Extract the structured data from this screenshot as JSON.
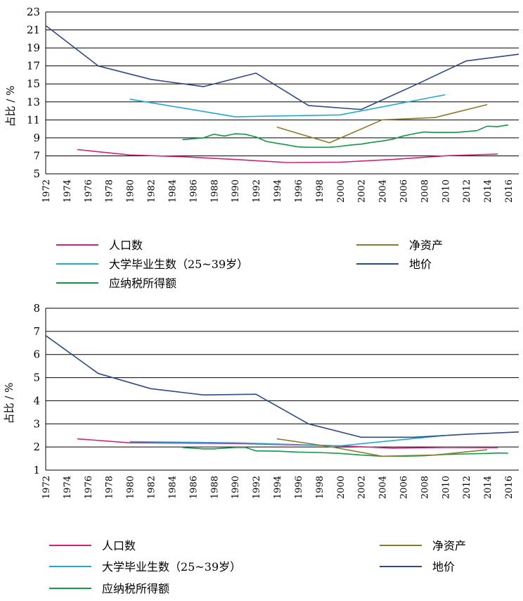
{
  "chart_data": [
    {
      "type": "line",
      "title": "",
      "xlabel": "",
      "ylabel": "占比 / %",
      "ylim": [
        5,
        23
      ],
      "yticks": [
        5,
        7,
        9,
        11,
        13,
        15,
        17,
        19,
        21,
        23
      ],
      "xlim": [
        1972,
        2017
      ],
      "xticks": [
        1972,
        1974,
        1976,
        1978,
        1980,
        1982,
        1984,
        1986,
        1988,
        1990,
        1992,
        1994,
        1996,
        1998,
        2000,
        2002,
        2004,
        2006,
        2008,
        2010,
        2012,
        2014,
        2016
      ],
      "grid": true,
      "legend": "bottom",
      "series": [
        {
          "name": "人口数",
          "color": "#d0237a",
          "points": [
            [
              1975,
              7.7
            ],
            [
              1980,
              7.1
            ],
            [
              1985,
              6.9
            ],
            [
              1990,
              6.6
            ],
            [
              1995,
              6.25
            ],
            [
              2000,
              6.3
            ],
            [
              2005,
              6.6
            ],
            [
              2010,
              7.0
            ],
            [
              2015,
              7.2
            ]
          ]
        },
        {
          "name": "大学毕业生数（25~39岁）",
          "color": "#22a8d6",
          "points": [
            [
              1980,
              13.3
            ],
            [
              1990,
              11.35
            ],
            [
              2000,
              11.55
            ],
            [
              2010,
              13.8
            ]
          ]
        },
        {
          "name": "应纳税所得额",
          "color": "#119944",
          "points": [
            [
              1985,
              8.8
            ],
            [
              1986,
              8.9
            ],
            [
              1987,
              9.0
            ],
            [
              1988,
              9.4
            ],
            [
              1989,
              9.2
            ],
            [
              1990,
              9.45
            ],
            [
              1991,
              9.4
            ],
            [
              1992,
              9.1
            ],
            [
              1993,
              8.6
            ],
            [
              1994,
              8.4
            ],
            [
              1995,
              8.2
            ],
            [
              1996,
              8.0
            ],
            [
              1997,
              7.95
            ],
            [
              1998,
              7.95
            ],
            [
              1999,
              7.95
            ],
            [
              2000,
              8.05
            ],
            [
              2001,
              8.2
            ],
            [
              2002,
              8.3
            ],
            [
              2003,
              8.5
            ],
            [
              2004,
              8.65
            ],
            [
              2005,
              8.85
            ],
            [
              2006,
              9.2
            ],
            [
              2007,
              9.45
            ],
            [
              2008,
              9.65
            ],
            [
              2009,
              9.6
            ],
            [
              2010,
              9.6
            ],
            [
              2011,
              9.6
            ],
            [
              2012,
              9.7
            ],
            [
              2013,
              9.8
            ],
            [
              2014,
              10.3
            ],
            [
              2015,
              10.25
            ],
            [
              2016,
              10.45
            ]
          ]
        },
        {
          "name": "净资产",
          "color": "#8c7a2e",
          "points": [
            [
              1994,
              10.2
            ],
            [
              1999,
              8.45
            ],
            [
              2004,
              11.0
            ],
            [
              2009,
              11.25
            ],
            [
              2014,
              12.7
            ]
          ]
        },
        {
          "name": "地价",
          "color": "#2d4b86",
          "points": [
            [
              1972,
              21.5
            ],
            [
              1977,
              17.0
            ],
            [
              1982,
              15.5
            ],
            [
              1987,
              14.7
            ],
            [
              1992,
              16.2
            ],
            [
              1997,
              12.6
            ],
            [
              2002,
              12.15
            ],
            [
              2007,
              14.8
            ],
            [
              2012,
              17.55
            ],
            [
              2017,
              18.3
            ]
          ]
        }
      ]
    },
    {
      "type": "line",
      "title": "",
      "xlabel": "",
      "ylabel": "占比 / %",
      "ylim": [
        1,
        8
      ],
      "yticks": [
        1,
        2,
        3,
        4,
        5,
        6,
        7,
        8
      ],
      "xlim": [
        1972,
        2017
      ],
      "xticks": [
        1972,
        1974,
        1976,
        1978,
        1980,
        1982,
        1984,
        1986,
        1988,
        1990,
        1992,
        1994,
        1996,
        1998,
        2000,
        2002,
        2004,
        2006,
        2008,
        2010,
        2012,
        2014,
        2016
      ],
      "grid": true,
      "legend": "bottom",
      "series": [
        {
          "name": "人口数",
          "color": "#d0237a",
          "points": [
            [
              1975,
              2.35
            ],
            [
              1980,
              2.18
            ],
            [
              1985,
              2.17
            ],
            [
              1990,
              2.15
            ],
            [
              1995,
              2.1
            ],
            [
              2000,
              2.05
            ],
            [
              2005,
              1.95
            ],
            [
              2010,
              1.98
            ],
            [
              2015,
              1.97
            ]
          ]
        },
        {
          "name": "大学毕业生数（25~39岁）",
          "color": "#22a8d6",
          "points": [
            [
              1980,
              2.23
            ],
            [
              1990,
              2.18
            ],
            [
              2000,
              2.05
            ],
            [
              2010,
              2.5
            ]
          ]
        },
        {
          "name": "应纳税所得额",
          "color": "#119944",
          "points": [
            [
              1985,
              1.98
            ],
            [
              1987,
              1.92
            ],
            [
              1988,
              1.92
            ],
            [
              1990,
              1.98
            ],
            [
              1991,
              1.98
            ],
            [
              1992,
              1.83
            ],
            [
              1994,
              1.82
            ],
            [
              1996,
              1.78
            ],
            [
              1998,
              1.76
            ],
            [
              2000,
              1.72
            ],
            [
              2002,
              1.65
            ],
            [
              2004,
              1.6
            ],
            [
              2006,
              1.6
            ],
            [
              2008,
              1.62
            ],
            [
              2010,
              1.68
            ],
            [
              2012,
              1.7
            ],
            [
              2014,
              1.72
            ],
            [
              2015,
              1.74
            ],
            [
              2016,
              1.73
            ]
          ]
        },
        {
          "name": "净资产",
          "color": "#8c7a2e",
          "points": [
            [
              1994,
              2.35
            ],
            [
              1999,
              2.02
            ],
            [
              2004,
              1.6
            ],
            [
              2009,
              1.65
            ],
            [
              2014,
              1.88
            ]
          ]
        },
        {
          "name": "地价",
          "color": "#2d4b86",
          "points": [
            [
              1972,
              6.82
            ],
            [
              1977,
              5.18
            ],
            [
              1982,
              4.52
            ],
            [
              1987,
              4.25
            ],
            [
              1992,
              4.28
            ],
            [
              1997,
              3.0
            ],
            [
              2002,
              2.42
            ],
            [
              2007,
              2.42
            ],
            [
              2012,
              2.55
            ],
            [
              2017,
              2.65
            ]
          ]
        }
      ]
    }
  ]
}
